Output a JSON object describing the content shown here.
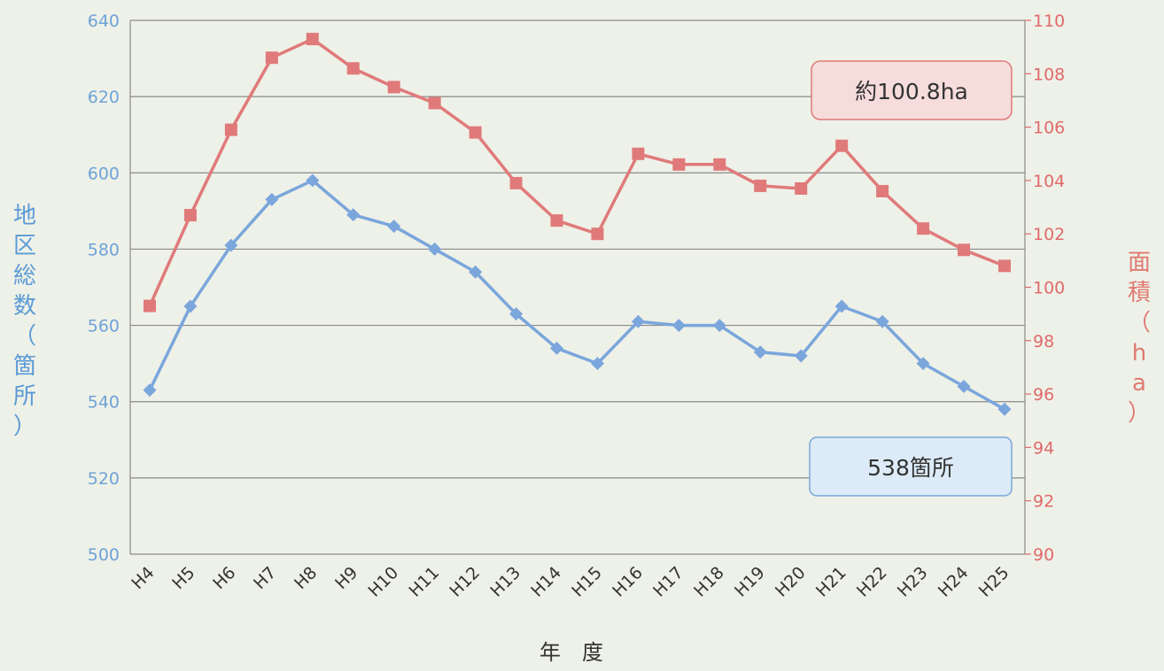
{
  "chart_data": {
    "type": "line",
    "xlabel": "年　度",
    "ylabel_left": "地区総数（箇所）",
    "ylabel_right": "面積（ha）",
    "categories": [
      "H4",
      "H5",
      "H6",
      "H7",
      "H8",
      "H9",
      "H10",
      "H11",
      "H12",
      "H13",
      "H14",
      "H15",
      "H16",
      "H17",
      "H18",
      "H19",
      "H20",
      "H21",
      "H22",
      "H23",
      "H24",
      "H25"
    ],
    "y_left": {
      "min": 500,
      "max": 640,
      "ticks": [
        500,
        520,
        540,
        560,
        580,
        600,
        620,
        640
      ]
    },
    "y_right": {
      "min": 90,
      "max": 110,
      "ticks": [
        90,
        92,
        94,
        96,
        98,
        100,
        102,
        104,
        106,
        108,
        110
      ]
    },
    "grid": true,
    "series": [
      {
        "axis": "left",
        "color": "#7aa6dc",
        "marker": "diamond",
        "values": [
          543,
          565,
          581,
          593,
          598,
          589,
          586,
          580,
          574,
          563,
          554,
          550,
          561,
          560,
          560,
          553,
          552,
          565,
          561,
          550,
          544,
          538
        ]
      },
      {
        "axis": "right",
        "color": "#e07a7a",
        "marker": "square",
        "values": [
          99.3,
          102.7,
          105.9,
          108.6,
          109.3,
          108.2,
          107.5,
          106.9,
          105.8,
          103.9,
          102.5,
          102.0,
          105.0,
          104.6,
          104.6,
          103.8,
          103.7,
          105.3,
          103.6,
          102.2,
          101.4,
          100.8
        ]
      }
    ],
    "annotations": [
      {
        "text": "約100.8ha",
        "series": 1
      },
      {
        "text": "538箇所",
        "series": 0
      }
    ]
  },
  "colors": {
    "left_axis": "#6ea3d8",
    "right_axis": "#e06a6a",
    "grid": "#8a8a8a",
    "callout_red_fill": "#f7dcdc",
    "callout_red_stroke": "#e07a7a",
    "callout_blue_fill": "#dcebf7",
    "callout_blue_stroke": "#7aa6dc"
  }
}
